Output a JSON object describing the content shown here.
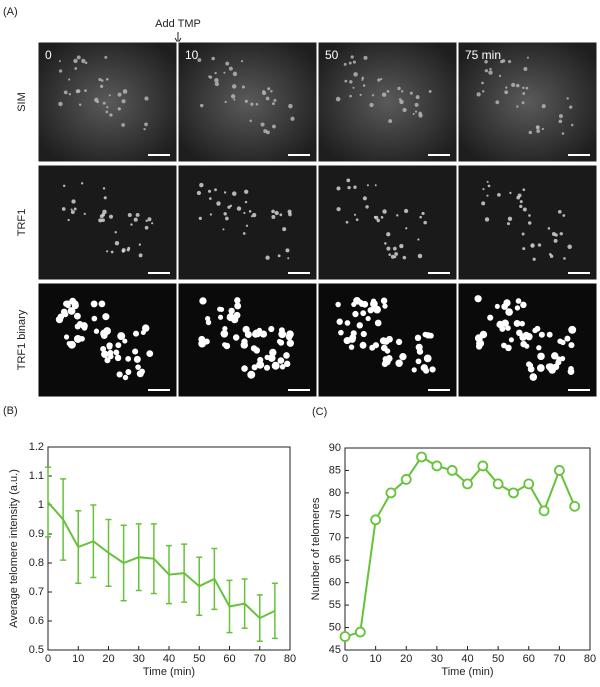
{
  "panel_a": {
    "label": "(A)",
    "annotation": "Add TMP",
    "columns": [
      "0",
      "10",
      "50",
      "75 min"
    ],
    "rows": [
      "SIM",
      "TRF1",
      "TRF1 binary"
    ]
  },
  "chart_data": [
    {
      "type": "line",
      "label": "(B)",
      "xlabel": "Time (min)",
      "ylabel": "Average telomere intensity (a.u.)",
      "x": [
        0,
        5,
        10,
        15,
        20,
        25,
        30,
        35,
        40,
        45,
        50,
        55,
        60,
        65,
        70,
        75
      ],
      "series": [
        {
          "color": "#66c23a",
          "values": [
            1.01,
            0.95,
            0.855,
            0.875,
            0.835,
            0.8,
            0.82,
            0.815,
            0.76,
            0.765,
            0.72,
            0.745,
            0.65,
            0.66,
            0.61,
            0.635
          ],
          "errors": [
            0.12,
            0.14,
            0.125,
            0.125,
            0.115,
            0.13,
            0.115,
            0.12,
            0.1,
            0.1,
            0.1,
            0.105,
            0.09,
            0.085,
            0.08,
            0.095
          ]
        }
      ],
      "xlim": [
        0,
        80
      ],
      "xticks": [
        0,
        10,
        20,
        30,
        40,
        50,
        60,
        70,
        80
      ],
      "ylim": [
        0.5,
        1.2
      ],
      "yticks": [
        0.5,
        0.6,
        0.7,
        0.8,
        0.9,
        1,
        1.1,
        1.2
      ]
    },
    {
      "type": "line",
      "label": "(C)",
      "xlabel": "Time (min)",
      "ylabel": "Number of telomeres",
      "marker": "circle",
      "x": [
        0,
        5,
        10,
        15,
        20,
        25,
        30,
        35,
        40,
        45,
        50,
        55,
        60,
        65,
        70,
        75
      ],
      "series": [
        {
          "color": "#66c23a",
          "values": [
            48,
            49,
            74,
            80,
            83,
            88,
            86,
            85,
            82,
            86,
            82,
            80,
            82,
            76,
            85,
            77
          ]
        }
      ],
      "xlim": [
        0,
        80
      ],
      "xticks": [
        0,
        10,
        20,
        30,
        40,
        50,
        60,
        70,
        80
      ],
      "ylim": [
        45,
        90
      ],
      "yticks": [
        45,
        50,
        55,
        60,
        65,
        70,
        75,
        80,
        85,
        90
      ]
    }
  ]
}
